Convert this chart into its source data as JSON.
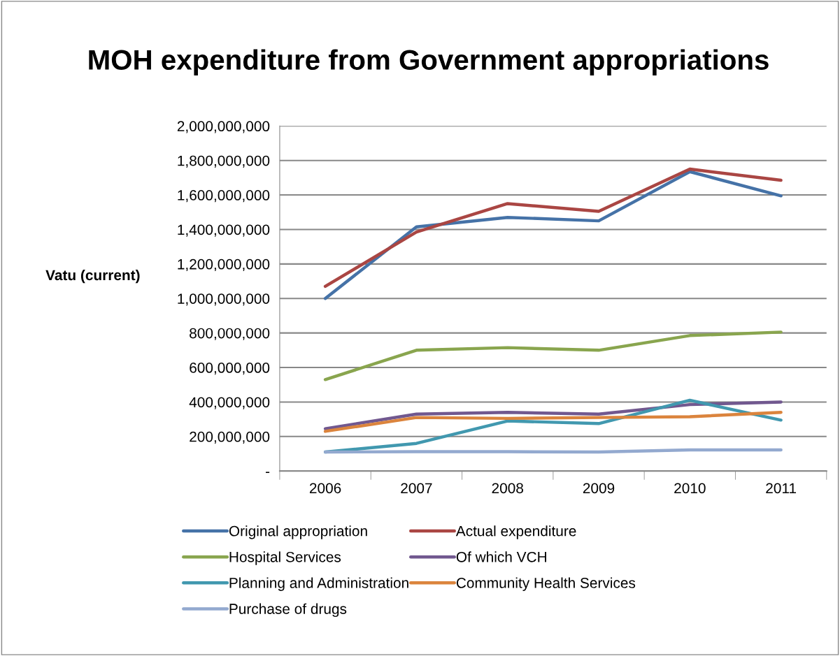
{
  "chart_data": {
    "type": "line",
    "title": "MOH expenditure from Government appropriations",
    "ylabel": "Vatu (current)",
    "categories": [
      "2006",
      "2007",
      "2008",
      "2009",
      "2010",
      "2011"
    ],
    "series": [
      {
        "name": "Original appropriation",
        "color": "#4572a7",
        "values": [
          1000000000,
          1415000000,
          1470000000,
          1450000000,
          1735000000,
          1595000000
        ]
      },
      {
        "name": "Actual expenditure",
        "color": "#aa4643",
        "values": [
          1070000000,
          1385000000,
          1550000000,
          1505000000,
          1750000000,
          1685000000
        ]
      },
      {
        "name": "Hospital Services",
        "color": "#89a54e",
        "values": [
          530000000,
          700000000,
          715000000,
          700000000,
          785000000,
          805000000
        ]
      },
      {
        "name": "Of which VCH",
        "color": "#71588f",
        "values": [
          245000000,
          330000000,
          340000000,
          330000000,
          385000000,
          400000000
        ]
      },
      {
        "name": "Planning and Administration",
        "color": "#4198af",
        "values": [
          110000000,
          160000000,
          290000000,
          275000000,
          410000000,
          295000000
        ]
      },
      {
        "name": "Community Health Services",
        "color": "#db843d",
        "values": [
          230000000,
          310000000,
          305000000,
          310000000,
          315000000,
          340000000
        ]
      },
      {
        "name": "Purchase of drugs",
        "color": "#93a9cf",
        "values": [
          110000000,
          112000000,
          112000000,
          110000000,
          122000000,
          122000000
        ]
      }
    ],
    "ylim": [
      0,
      2000000000
    ],
    "yticks": [
      {
        "value": 0,
        "label": "-"
      },
      {
        "value": 200000000,
        "label": "200,000,000"
      },
      {
        "value": 400000000,
        "label": "400,000,000"
      },
      {
        "value": 600000000,
        "label": "600,000,000"
      },
      {
        "value": 800000000,
        "label": "800,000,000"
      },
      {
        "value": 1000000000,
        "label": "1,000,000,000"
      },
      {
        "value": 1200000000,
        "label": "1,200,000,000"
      },
      {
        "value": 1400000000,
        "label": "1,400,000,000"
      },
      {
        "value": 1600000000,
        "label": "1,600,000,000"
      },
      {
        "value": 1800000000,
        "label": "1,800,000,000"
      },
      {
        "value": 2000000000,
        "label": "2,000,000,000"
      }
    ],
    "grid": "y",
    "legend": "bottom",
    "marker": "none",
    "line_style": "solid"
  }
}
